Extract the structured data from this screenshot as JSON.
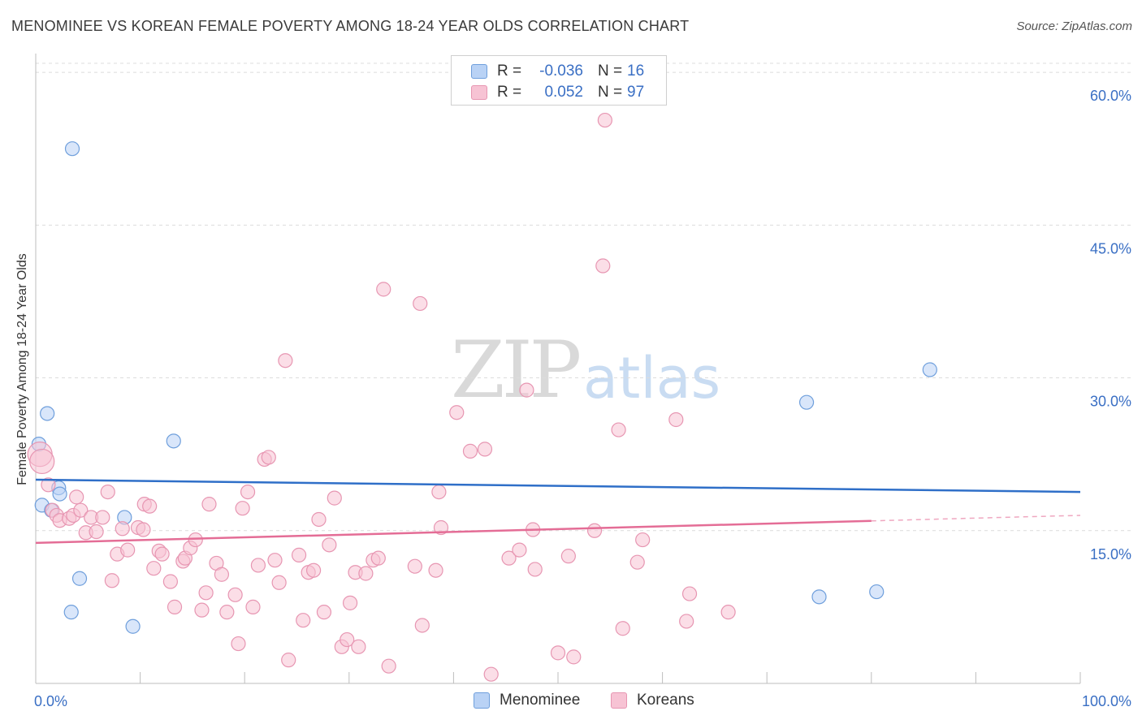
{
  "title": "MENOMINEE VS KOREAN FEMALE POVERTY AMONG 18-24 YEAR OLDS CORRELATION CHART",
  "source": "Source: ZipAtlas.com",
  "watermark": {
    "zip": "ZIP",
    "atlas": "atlas"
  },
  "colors": {
    "menominee_fill": "#b9d2f5",
    "menominee_stroke": "#6f9fdc",
    "menominee_line": "#2f6fc8",
    "koreans_fill": "#f7c3d4",
    "koreans_stroke": "#e796b2",
    "koreans_line": "#e46d96",
    "tick_label": "#3a6fc4",
    "grid": "#dcdcdc"
  },
  "legend": {
    "rows": [
      {
        "r_label": "R =",
        "r_value": "-0.036",
        "n_label": "N =",
        "n_value": "16"
      },
      {
        "r_label": "R =",
        "r_value": "0.052",
        "n_label": "N =",
        "n_value": "97"
      }
    ]
  },
  "bottom_legend": [
    "Menominee",
    "Koreans"
  ],
  "chart_data": {
    "type": "scatter",
    "title": "MENOMINEE VS KOREAN FEMALE POVERTY AMONG 18-24 YEAR OLDS CORRELATION CHART",
    "xlabel": "",
    "ylabel": "Female Poverty Among 18-24 Year Olds",
    "xlim": [
      0,
      100
    ],
    "ylim": [
      0,
      62
    ],
    "x_tick_labels": [
      "0.0%",
      "100.0%"
    ],
    "y_ticks": [
      15,
      30,
      45,
      60
    ],
    "y_tick_labels": [
      "15.0%",
      "30.0%",
      "45.0%",
      "60.0%"
    ],
    "grid": true,
    "legend_position": "top-center",
    "series": [
      {
        "name": "Menominee",
        "r": -0.036,
        "n": 16,
        "trend": {
          "x": [
            0,
            100
          ],
          "y": [
            20.0,
            18.8
          ],
          "solid_to": 100
        },
        "points": [
          [
            0.3,
            23.5
          ],
          [
            0.6,
            17.5
          ],
          [
            1.1,
            26.5
          ],
          [
            1.5,
            17.0
          ],
          [
            2.2,
            19.2
          ],
          [
            2.3,
            18.6
          ],
          [
            3.4,
            7.0
          ],
          [
            3.5,
            52.5
          ],
          [
            4.2,
            10.3
          ],
          [
            8.5,
            16.3
          ],
          [
            9.3,
            5.6
          ],
          [
            13.2,
            23.8
          ],
          [
            73.8,
            27.6
          ],
          [
            75.0,
            8.5
          ],
          [
            80.5,
            9.0
          ],
          [
            85.6,
            30.8
          ]
        ]
      },
      {
        "name": "Koreans",
        "r": 0.052,
        "n": 97,
        "trend": {
          "x": [
            0,
            100
          ],
          "y": [
            13.8,
            16.5
          ],
          "solid_to": 80
        },
        "points": [
          [
            0.4,
            22.5
          ],
          [
            0.6,
            21.8
          ],
          [
            1.2,
            19.5
          ],
          [
            1.6,
            17.0
          ],
          [
            2.0,
            16.5
          ],
          [
            2.3,
            16.0
          ],
          [
            3.2,
            16.2
          ],
          [
            3.6,
            16.5
          ],
          [
            3.9,
            18.3
          ],
          [
            4.3,
            17.0
          ],
          [
            4.8,
            14.8
          ],
          [
            5.3,
            16.3
          ],
          [
            5.8,
            14.9
          ],
          [
            6.4,
            16.3
          ],
          [
            6.9,
            18.8
          ],
          [
            7.3,
            10.1
          ],
          [
            7.8,
            12.7
          ],
          [
            8.3,
            15.2
          ],
          [
            8.8,
            13.1
          ],
          [
            9.8,
            15.3
          ],
          [
            10.3,
            15.1
          ],
          [
            10.4,
            17.6
          ],
          [
            10.9,
            17.4
          ],
          [
            11.3,
            11.3
          ],
          [
            11.8,
            13.0
          ],
          [
            12.1,
            12.7
          ],
          [
            12.9,
            10.0
          ],
          [
            13.3,
            7.5
          ],
          [
            14.1,
            12.0
          ],
          [
            14.3,
            12.3
          ],
          [
            14.8,
            13.3
          ],
          [
            15.3,
            14.1
          ],
          [
            15.9,
            7.2
          ],
          [
            16.3,
            8.9
          ],
          [
            16.6,
            17.6
          ],
          [
            17.3,
            11.8
          ],
          [
            17.8,
            10.7
          ],
          [
            18.3,
            7.0
          ],
          [
            19.1,
            8.7
          ],
          [
            19.4,
            3.9
          ],
          [
            19.8,
            17.2
          ],
          [
            20.3,
            18.8
          ],
          [
            20.8,
            7.5
          ],
          [
            21.3,
            11.6
          ],
          [
            21.9,
            22.0
          ],
          [
            22.3,
            22.2
          ],
          [
            22.9,
            12.1
          ],
          [
            23.3,
            9.9
          ],
          [
            23.9,
            31.7
          ],
          [
            24.2,
            2.3
          ],
          [
            25.2,
            12.6
          ],
          [
            25.6,
            6.2
          ],
          [
            26.1,
            10.9
          ],
          [
            26.6,
            11.1
          ],
          [
            27.1,
            16.1
          ],
          [
            27.6,
            7.0
          ],
          [
            28.1,
            13.6
          ],
          [
            28.6,
            18.2
          ],
          [
            29.3,
            3.6
          ],
          [
            29.8,
            4.3
          ],
          [
            30.1,
            7.9
          ],
          [
            30.6,
            10.9
          ],
          [
            30.9,
            3.6
          ],
          [
            31.6,
            10.8
          ],
          [
            32.3,
            12.1
          ],
          [
            32.8,
            12.3
          ],
          [
            33.3,
            38.7
          ],
          [
            33.8,
            1.7
          ],
          [
            36.3,
            11.5
          ],
          [
            36.8,
            37.3
          ],
          [
            37.0,
            5.7
          ],
          [
            38.3,
            11.1
          ],
          [
            38.6,
            18.8
          ],
          [
            38.8,
            15.3
          ],
          [
            40.3,
            26.6
          ],
          [
            41.6,
            22.8
          ],
          [
            43.0,
            23.0
          ],
          [
            43.6,
            0.9
          ],
          [
            45.3,
            12.3
          ],
          [
            46.3,
            13.1
          ],
          [
            47.0,
            28.8
          ],
          [
            47.6,
            15.1
          ],
          [
            47.8,
            11.2
          ],
          [
            50.0,
            3.0
          ],
          [
            51.0,
            12.5
          ],
          [
            51.5,
            2.6
          ],
          [
            53.5,
            15.0
          ],
          [
            54.3,
            41.0
          ],
          [
            54.5,
            55.3
          ],
          [
            55.8,
            24.9
          ],
          [
            56.2,
            5.4
          ],
          [
            57.6,
            11.9
          ],
          [
            58.1,
            14.1
          ],
          [
            61.3,
            25.9
          ],
          [
            62.3,
            6.1
          ],
          [
            62.6,
            8.8
          ],
          [
            66.3,
            7.0
          ]
        ]
      }
    ]
  }
}
